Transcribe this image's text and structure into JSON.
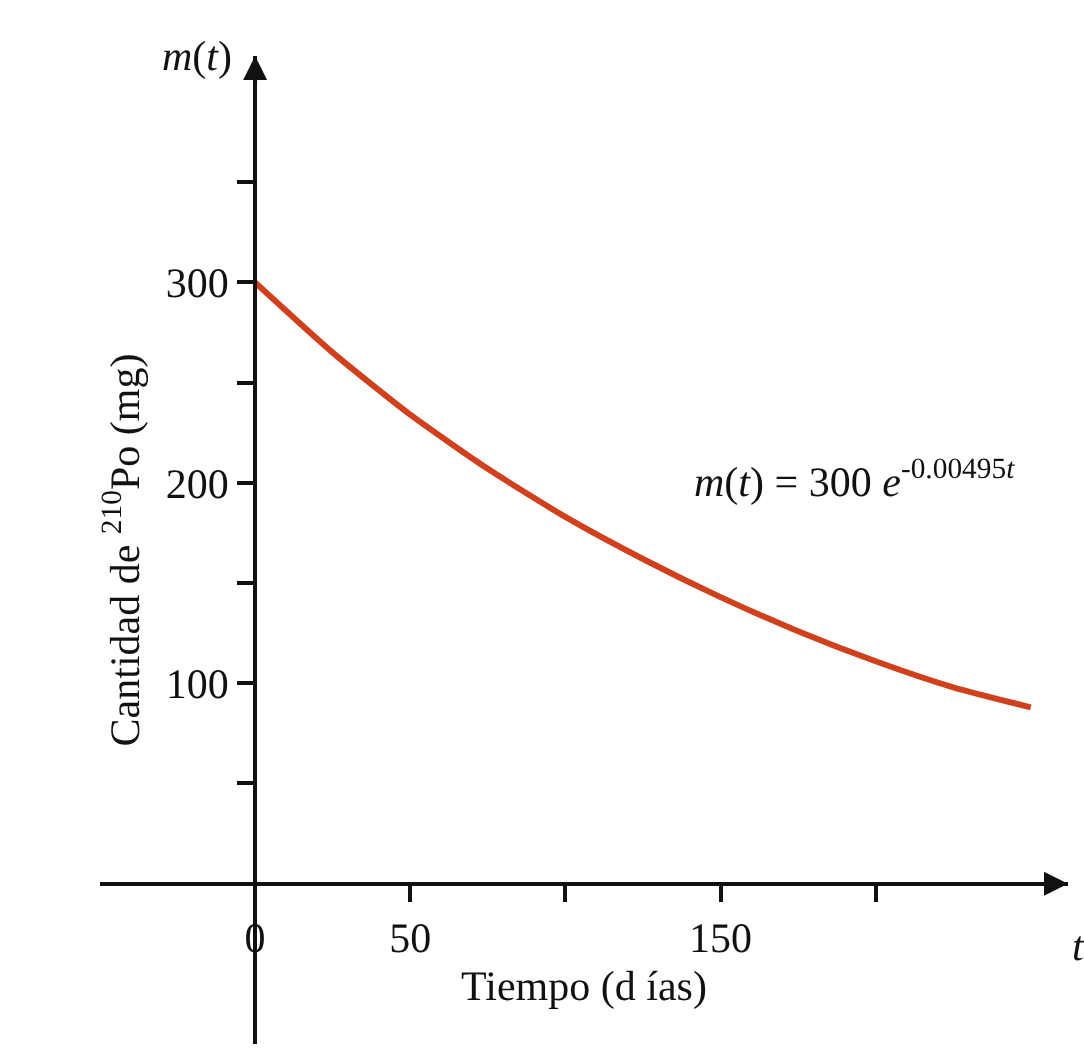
{
  "chart_data": {
    "type": "line",
    "xlabel": "Tiempo (d ías)",
    "ylabel": "Cantidad de $^{210}$Po (mg)",
    "x": [
      0,
      25,
      50,
      75,
      100,
      125,
      150,
      175,
      200,
      225,
      250
    ],
    "series": [
      {
        "color": "#d0401c",
        "values": [
          300,
          265,
          234,
          207,
          183,
          162,
          143,
          126,
          111,
          98,
          88
        ]
      }
    ],
    "xlim": [
      -50,
      262
    ],
    "ylim": [
      -80,
      413
    ],
    "xticks": [
      0,
      50,
      {
        "value": 100,
        "label": null
      },
      150,
      {
        "value": 200,
        "label": null
      }
    ],
    "yticks": [
      {
        "value": 50,
        "label": null
      },
      100,
      {
        "value": 150,
        "label": null
      },
      200,
      {
        "value": 250,
        "label": null
      },
      300,
      {
        "value": 350,
        "label": null
      }
    ],
    "annotations": [
      "m(t) = 300 e$^{-0.00495t}$",
      "m(t)",
      "t"
    ],
    "marker": "none",
    "line_style": "solid"
  }
}
